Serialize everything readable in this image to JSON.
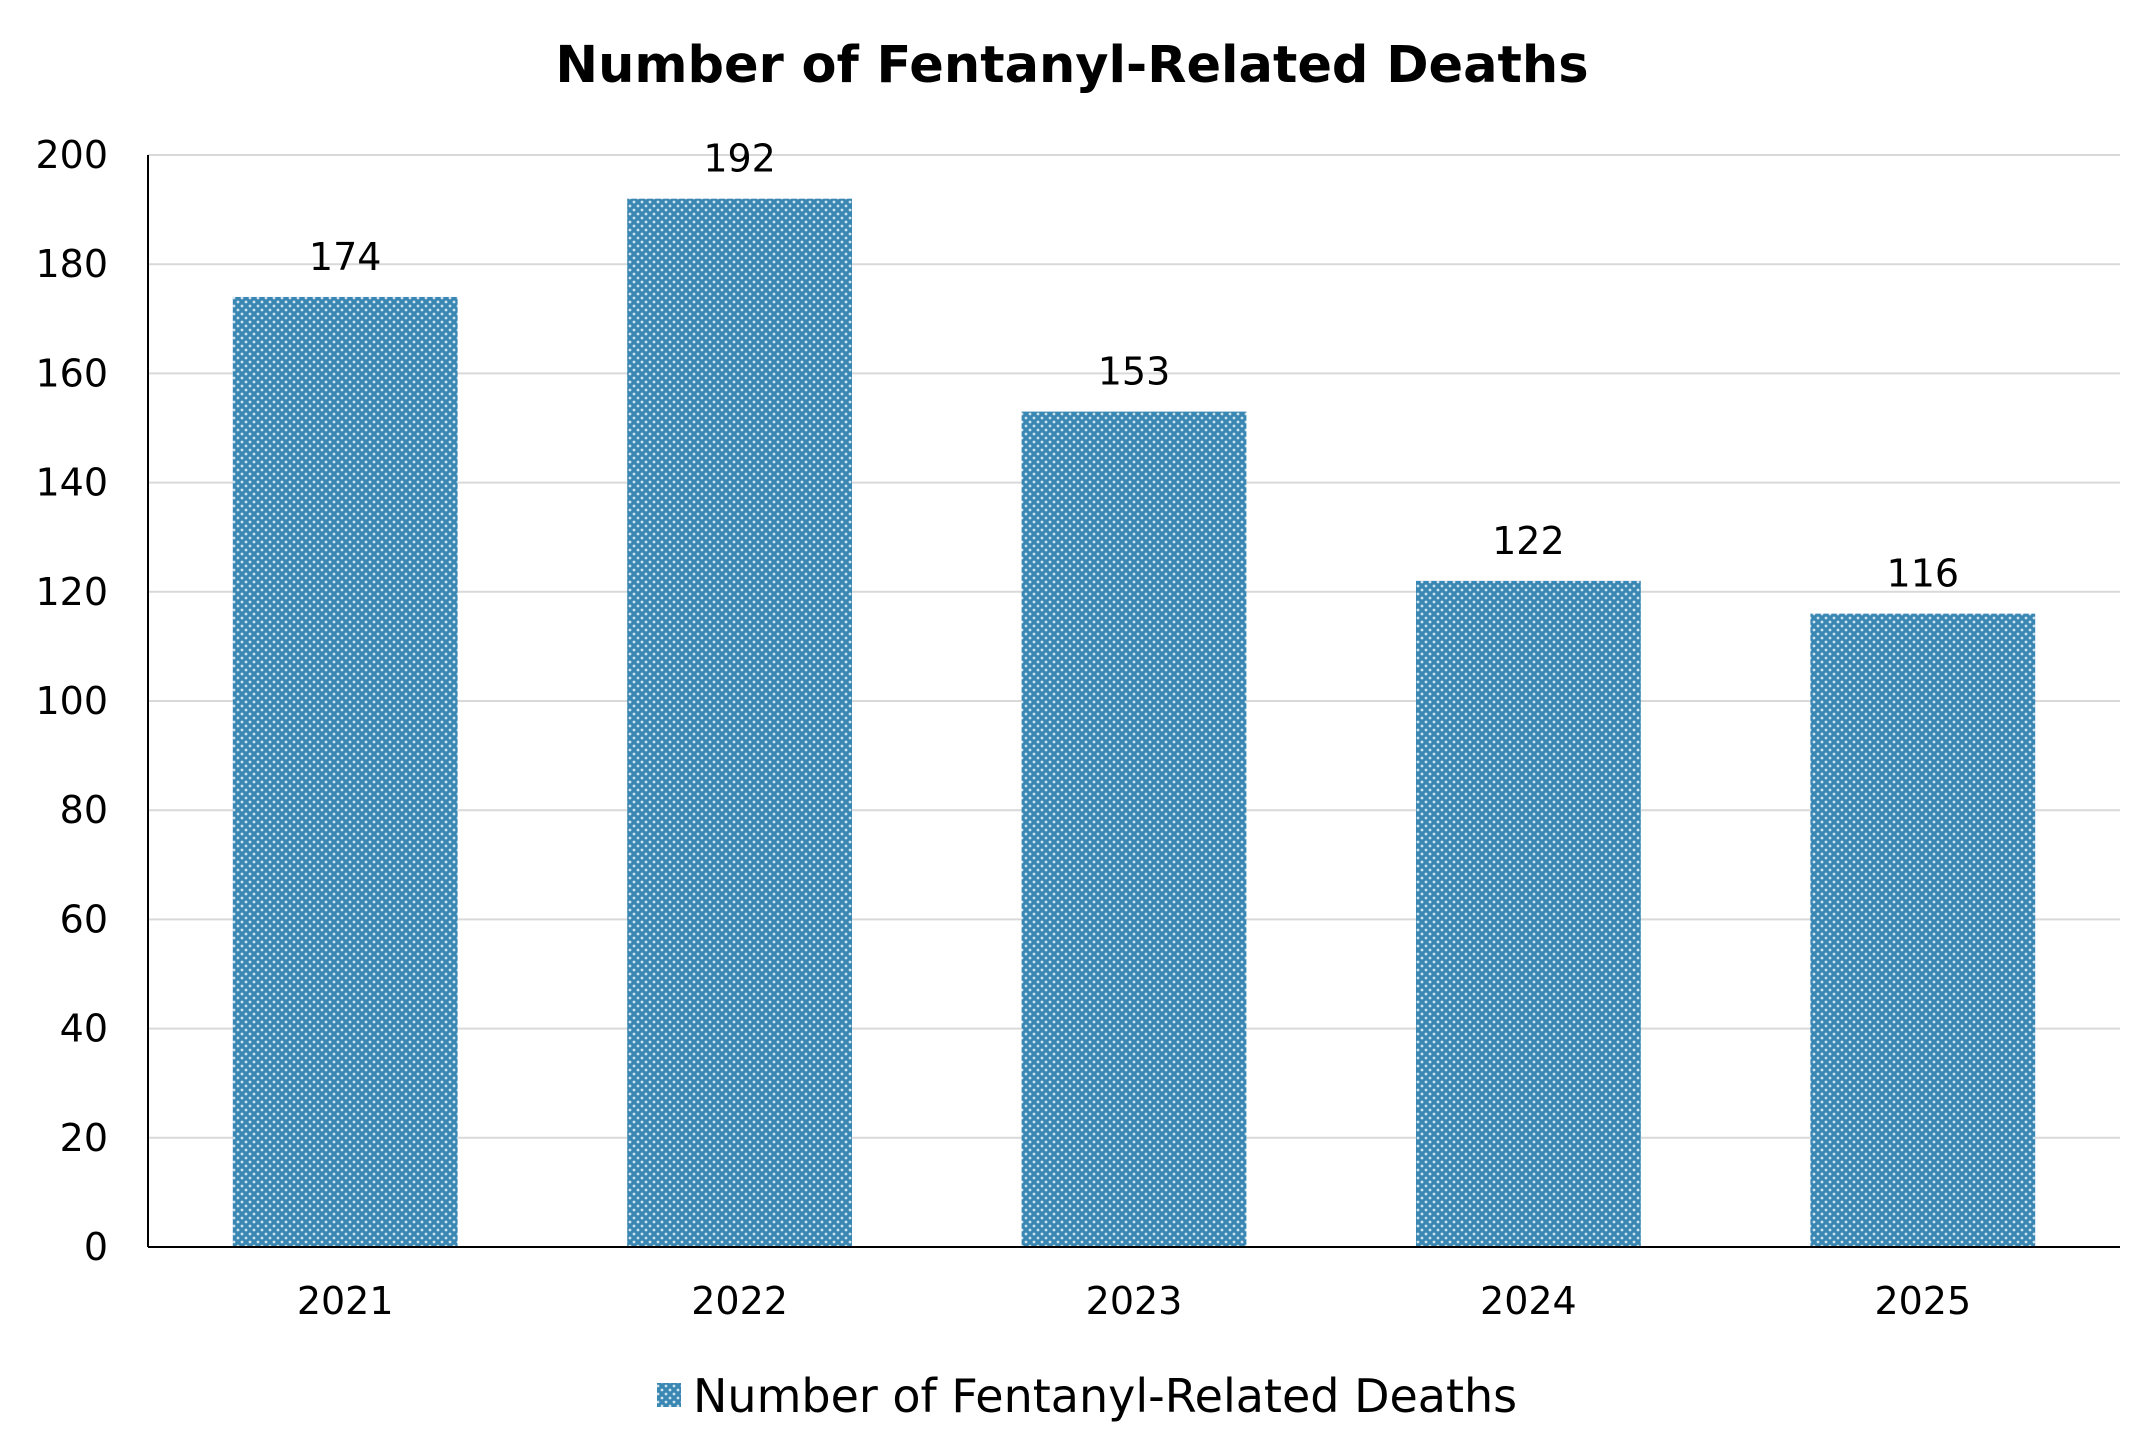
{
  "chart_data": {
    "type": "bar",
    "title": "Number of Fentanyl-Related Deaths",
    "xlabel": "",
    "ylabel": "",
    "categories": [
      "2021",
      "2022",
      "2023",
      "2024",
      "2025"
    ],
    "series": [
      {
        "name": "Number of Fentanyl-Related Deaths",
        "values": [
          174,
          192,
          153,
          122,
          116
        ]
      }
    ],
    "data_labels": [
      "174",
      "192",
      "153",
      "122",
      "116"
    ],
    "ylim": [
      0,
      200
    ],
    "yticks": [
      "0",
      "20",
      "40",
      "60",
      "80",
      "100",
      "120",
      "140",
      "160",
      "180",
      "200"
    ],
    "grid": true,
    "legend_position": "bottom-center",
    "colors": {
      "bar_fill": "#3a87b3",
      "bar_pattern_dot": "#cfe3ef",
      "grid": "#d9d9d9",
      "axis": "#000000"
    }
  }
}
